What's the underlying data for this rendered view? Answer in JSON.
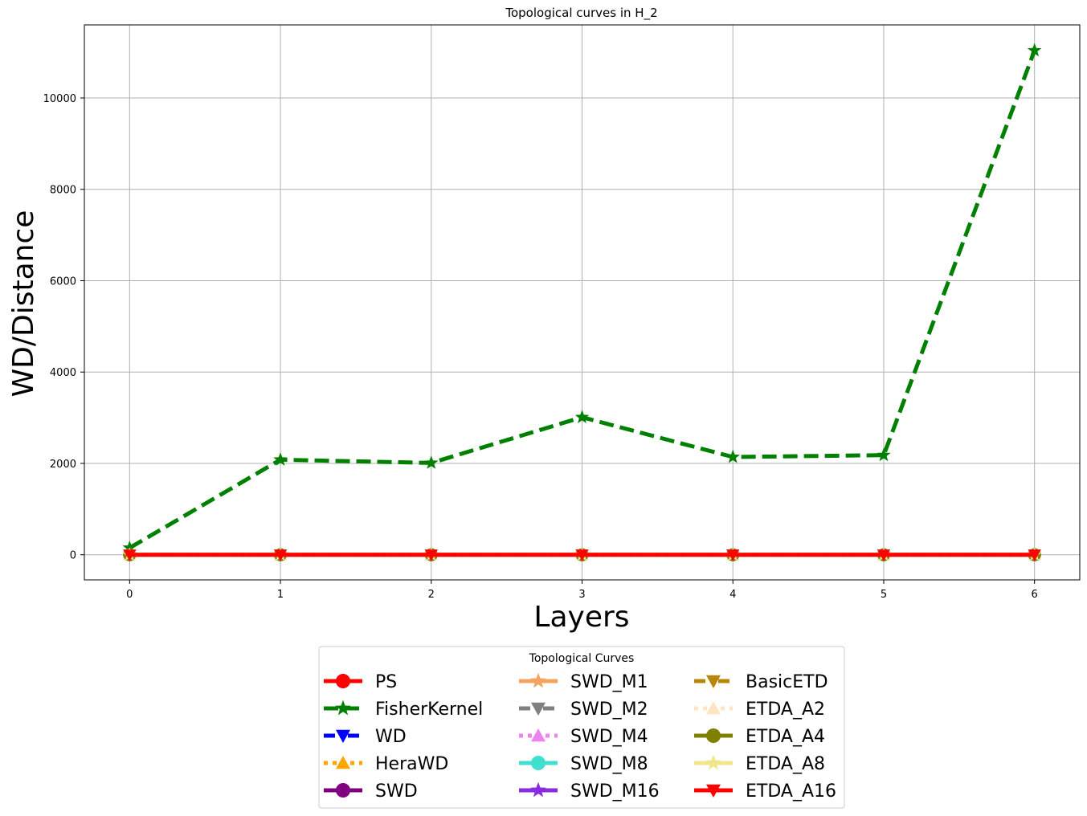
{
  "chart_data": {
    "type": "line",
    "title": "Topological curves in H_2",
    "xlabel": "Layers",
    "ylabel": "WD/Distance",
    "x": [
      0,
      1,
      2,
      3,
      4,
      5,
      6
    ],
    "xticks": [
      "0",
      "1",
      "2",
      "3",
      "4",
      "5",
      "6"
    ],
    "yticks": [
      "0",
      "2000",
      "4000",
      "6000",
      "8000",
      "10000"
    ],
    "ytick_values": [
      0,
      2000,
      4000,
      6000,
      8000,
      10000
    ],
    "xlim": [
      -0.3,
      6.3
    ],
    "ylim": [
      -550,
      11600
    ],
    "grid": true,
    "legend": {
      "title": "Topological Curves",
      "placement": "below-center",
      "columns": 3
    },
    "series": [
      {
        "name": "PS",
        "color": "#ff0000",
        "dash": "solid",
        "marker": "circle",
        "values": [
          0,
          0,
          0,
          0,
          0,
          0,
          0
        ]
      },
      {
        "name": "FisherKernel",
        "color": "#008000",
        "dash": "dashed",
        "marker": "star",
        "values": [
          150,
          2080,
          2010,
          3010,
          2140,
          2180,
          11040
        ]
      },
      {
        "name": "WD",
        "color": "#0000ff",
        "dash": "dashdot",
        "marker": "triangle-down",
        "values": [
          0,
          0,
          0,
          0,
          0,
          0,
          0
        ]
      },
      {
        "name": "HeraWD",
        "color": "#ffa500",
        "dash": "dotted",
        "marker": "triangle-up",
        "values": [
          0,
          0,
          0,
          0,
          0,
          0,
          0
        ]
      },
      {
        "name": "SWD",
        "color": "#800080",
        "dash": "solid",
        "marker": "circle",
        "values": [
          0,
          0,
          0,
          0,
          0,
          0,
          0
        ]
      },
      {
        "name": "SWD_M1",
        "color": "#f4a460",
        "dash": "solid",
        "marker": "star",
        "values": [
          0,
          0,
          0,
          0,
          0,
          0,
          0
        ]
      },
      {
        "name": "SWD_M2",
        "color": "#808080",
        "dash": "dashdot",
        "marker": "triangle-down",
        "values": [
          0,
          0,
          0,
          0,
          0,
          0,
          0
        ]
      },
      {
        "name": "SWD_M4",
        "color": "#ee82ee",
        "dash": "dotted",
        "marker": "triangle-up",
        "values": [
          0,
          0,
          0,
          0,
          0,
          0,
          0
        ]
      },
      {
        "name": "SWD_M8",
        "color": "#40e0d0",
        "dash": "solid",
        "marker": "circle",
        "values": [
          0,
          0,
          0,
          0,
          0,
          0,
          0
        ]
      },
      {
        "name": "SWD_M16",
        "color": "#8a2be2",
        "dash": "solid",
        "marker": "star",
        "values": [
          0,
          0,
          0,
          0,
          0,
          0,
          0
        ]
      },
      {
        "name": "BasicETD",
        "color": "#b8860b",
        "dash": "dashdot",
        "marker": "triangle-down",
        "values": [
          0,
          0,
          0,
          0,
          0,
          0,
          0
        ]
      },
      {
        "name": "ETDA_A2",
        "color": "#ffe4c4",
        "dash": "dotted",
        "marker": "triangle-up",
        "values": [
          0,
          0,
          0,
          0,
          0,
          0,
          0
        ]
      },
      {
        "name": "ETDA_A4",
        "color": "#808000",
        "dash": "solid",
        "marker": "circle",
        "values": [
          0,
          0,
          0,
          0,
          0,
          0,
          0
        ]
      },
      {
        "name": "ETDA_A8",
        "color": "#f0e68c",
        "dash": "solid",
        "marker": "star",
        "values": [
          0,
          0,
          0,
          0,
          0,
          0,
          0
        ]
      },
      {
        "name": "ETDA_A16",
        "color": "#ff0000",
        "dash": "solid",
        "marker": "triangle-down",
        "values": [
          0,
          0,
          0,
          0,
          0,
          0,
          0
        ]
      }
    ]
  }
}
